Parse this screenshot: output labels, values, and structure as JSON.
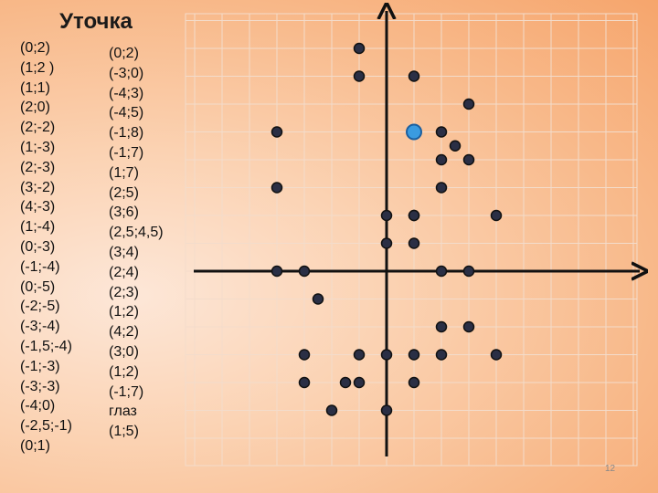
{
  "title": "Уточка",
  "column1": [
    "(0;2)",
    "(1;2 )",
    "(1;1)",
    "(2;0)",
    "(2;-2)",
    "(1;-3)",
    "(2;-3)",
    "(3;-2)",
    "(4;-3)",
    "(1;-4)",
    "(0;-3)",
    "(-1;-4)",
    "(0;-5)",
    "(-2;-5)",
    "(-3;-4)",
    "(-1,5;-4)",
    "(-1;-3)",
    "(-3;-3)",
    "(-4;0)",
    "(-2,5;-1)",
    "(0;1)"
  ],
  "column2": [
    "(0;2)",
    "(-3;0)",
    "(-4;3)",
    "(-4;5)",
    "(-1;8)",
    "(-1;7)",
    "(1;7)",
    "(2;5)",
    "(3;6)",
    "(2,5;4,5)",
    "(3;4)",
    "(2;4)",
    "(2;3)",
    "(1;2)",
    "(4;2)",
    "(3;0)",
    "(1;2)",
    "(-1;7)",
    "глаз",
    "(1;5)"
  ],
  "points": {
    "x": [
      0,
      1,
      1,
      2,
      2,
      1,
      2,
      3,
      4,
      1,
      0,
      -1,
      0,
      -2,
      -3,
      -1.5,
      -1,
      -3,
      -4,
      -2.5,
      0,
      -3,
      -4,
      -4,
      -1,
      -1,
      1,
      2,
      3,
      2.5,
      3,
      2,
      2,
      1,
      4,
      3
    ],
    "y": [
      2,
      2,
      1,
      0,
      -2,
      -3,
      -3,
      -2,
      -3,
      -4,
      -3,
      -4,
      -5,
      -5,
      -4,
      -4,
      -3,
      -3,
      0,
      -1,
      1,
      0,
      3,
      5,
      8,
      7,
      7,
      5,
      6,
      4.5,
      4,
      4,
      3,
      2,
      2,
      0
    ]
  },
  "eye": {
    "x": 1,
    "y": 5,
    "color": "#3a9be0"
  },
  "page_number": "12"
}
